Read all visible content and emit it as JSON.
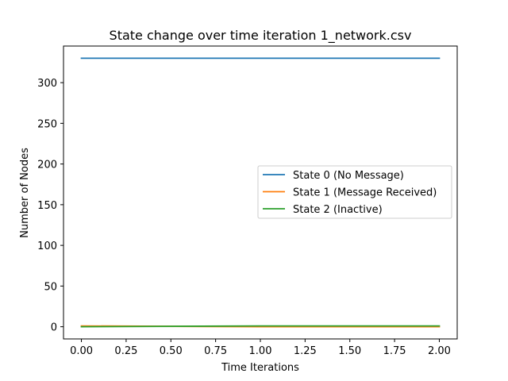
{
  "chart_data": {
    "type": "line",
    "title": "State change over time iteration 1_network.csv",
    "xlabel": "Time Iterations",
    "ylabel": "Number of Nodes",
    "xlim": [
      -0.1,
      2.1
    ],
    "ylim": [
      -15,
      345
    ],
    "xticks": [
      0.0,
      0.25,
      0.5,
      0.75,
      1.0,
      1.25,
      1.5,
      1.75,
      2.0
    ],
    "xtick_labels": [
      "0.00",
      "0.25",
      "0.50",
      "0.75",
      "1.00",
      "1.25",
      "1.50",
      "1.75",
      "2.00"
    ],
    "yticks": [
      0,
      50,
      100,
      150,
      200,
      250,
      300
    ],
    "ytick_labels": [
      "0",
      "50",
      "100",
      "150",
      "200",
      "250",
      "300"
    ],
    "grid": false,
    "legend_position": "center-right",
    "x": [
      0,
      1,
      2
    ],
    "series": [
      {
        "name": "State 0 (No Message)",
        "color": "#1f77b4",
        "values": [
          330,
          330,
          330
        ]
      },
      {
        "name": "State 1 (Message Received)",
        "color": "#ff7f0e",
        "values": [
          1,
          0,
          0
        ]
      },
      {
        "name": "State 2 (Inactive)",
        "color": "#2ca02c",
        "values": [
          0,
          1,
          1
        ]
      }
    ]
  }
}
